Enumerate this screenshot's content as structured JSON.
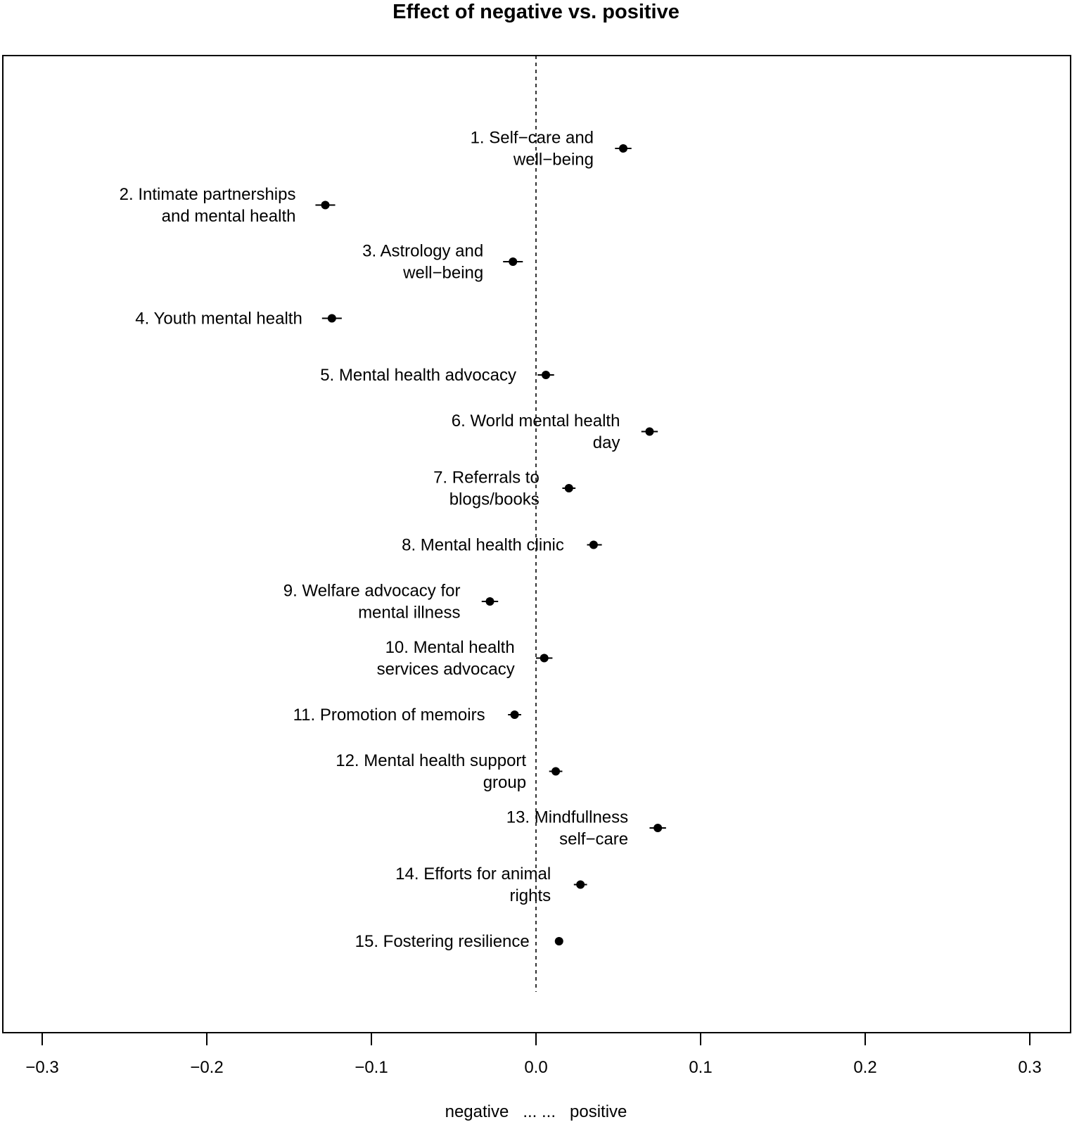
{
  "chart_data": {
    "type": "scatter",
    "title": "Effect of negative vs. positive",
    "xlabel": "negative   ... ...   positive",
    "ylabel": "",
    "xlim": [
      -0.33,
      0.33
    ],
    "xticks": [
      -0.3,
      -0.2,
      -0.1,
      0.0,
      0.1,
      0.2,
      0.3
    ],
    "xtick_labels": [
      "−0.3",
      "−0.2",
      "−0.1",
      "0.0",
      "0.1",
      "0.2",
      "0.3"
    ],
    "reference_line": 0,
    "grid": false,
    "points": [
      {
        "label": [
          "1. Self−care and",
          "well−being"
        ],
        "x": 0.053,
        "ci": [
          0.048,
          0.058
        ]
      },
      {
        "label": [
          "2. Intimate partnerships",
          "and mental health"
        ],
        "x": -0.128,
        "ci": [
          -0.134,
          -0.122
        ]
      },
      {
        "label": [
          "3. Astrology and",
          "well−being"
        ],
        "x": -0.014,
        "ci": [
          -0.02,
          -0.008
        ]
      },
      {
        "label": [
          "4. Youth mental health"
        ],
        "x": -0.124,
        "ci": [
          -0.13,
          -0.118
        ]
      },
      {
        "label": [
          "5. Mental health advocacy"
        ],
        "x": 0.006,
        "ci": [
          0.001,
          0.011
        ]
      },
      {
        "label": [
          "6. World mental health",
          "day"
        ],
        "x": 0.069,
        "ci": [
          0.064,
          0.074
        ]
      },
      {
        "label": [
          "7. Referrals to",
          "blogs/books"
        ],
        "x": 0.02,
        "ci": [
          0.016,
          0.024
        ]
      },
      {
        "label": [
          "8. Mental health clinic"
        ],
        "x": 0.035,
        "ci": [
          0.031,
          0.04
        ]
      },
      {
        "label": [
          "9. Welfare advocacy for",
          "mental illness"
        ],
        "x": -0.028,
        "ci": [
          -0.033,
          -0.023
        ]
      },
      {
        "label": [
          "10. Mental health",
          "services advocacy"
        ],
        "x": 0.005,
        "ci": [
          0.0,
          0.01
        ]
      },
      {
        "label": [
          "11. Promotion of memoirs"
        ],
        "x": -0.013,
        "ci": [
          -0.017,
          -0.009
        ]
      },
      {
        "label": [
          "12. Mental health support",
          "group"
        ],
        "x": 0.012,
        "ci": [
          0.008,
          0.016
        ]
      },
      {
        "label": [
          "13. Mindfullness",
          "self−care"
        ],
        "x": 0.074,
        "ci": [
          0.069,
          0.079
        ]
      },
      {
        "label": [
          "14. Efforts for animal",
          "rights"
        ],
        "x": 0.027,
        "ci": [
          0.023,
          0.031
        ]
      },
      {
        "label": [
          "15. Fostering resilience"
        ],
        "x": 0.014,
        "ci": [
          0.012,
          0.016
        ]
      }
    ]
  }
}
